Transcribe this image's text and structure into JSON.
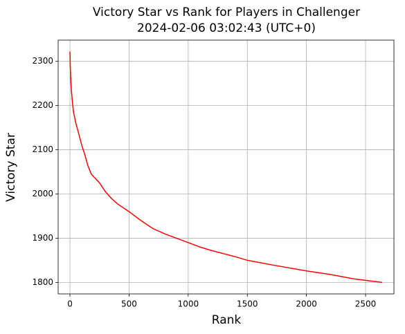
{
  "chart_data": {
    "type": "line",
    "title": "Victory Star vs Rank for Players in Challenger",
    "subtitle": "2024-02-06 03:02:43 (UTC+0)",
    "xlabel": "Rank",
    "ylabel": "Victory Star",
    "x": [
      0,
      2,
      5,
      10,
      20,
      30,
      50,
      70,
      100,
      130,
      150,
      180,
      250,
      300,
      350,
      400,
      500,
      600,
      700,
      800,
      1000,
      1100,
      1200,
      1400,
      1500,
      1700,
      2000,
      2200,
      2400,
      2640
    ],
    "series": [
      {
        "name": "Victory Star",
        "color": "#ff0000",
        "values": [
          2322,
          2290,
          2270,
          2240,
          2210,
          2185,
          2160,
          2140,
          2110,
          2085,
          2065,
          2045,
          2025,
          2005,
          1990,
          1978,
          1960,
          1940,
          1922,
          1910,
          1890,
          1880,
          1872,
          1858,
          1850,
          1840,
          1826,
          1818,
          1808,
          1800
        ]
      }
    ],
    "xlim": [
      -100,
      2740
    ],
    "xticks": [
      0,
      500,
      1000,
      1500,
      2000,
      2500
    ],
    "ylim": [
      1774,
      2348
    ],
    "yticks": [
      1800,
      1900,
      2000,
      2100,
      2200,
      2300
    ],
    "grid": true
  }
}
